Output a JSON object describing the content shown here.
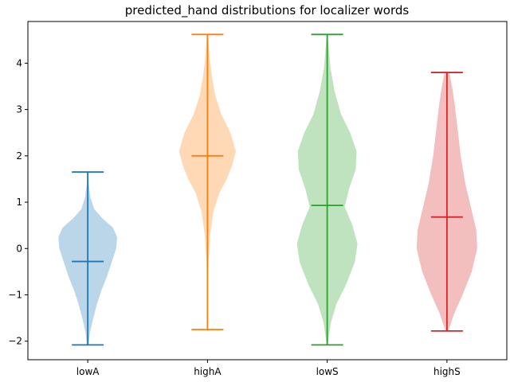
{
  "chart_data": {
    "type": "violin",
    "title": "predicted_hand distributions for localizer words",
    "xlabel": "",
    "ylabel": "",
    "ylim": [
      -2.4,
      4.9
    ],
    "yticks": [
      -2,
      -1,
      0,
      1,
      2,
      3,
      4
    ],
    "ytick_labels": [
      "−2",
      "−1",
      "0",
      "1",
      "2",
      "3",
      "4"
    ],
    "categories": [
      "lowA",
      "highA",
      "lowS",
      "highS"
    ],
    "grid": false,
    "series": [
      {
        "category": "lowA",
        "color": "#1f77b4",
        "min": -2.08,
        "max": 1.65,
        "median": -0.28,
        "density": [
          [
            -2.08,
            0.02
          ],
          [
            -1.8,
            0.05
          ],
          [
            -1.5,
            0.12
          ],
          [
            -1.2,
            0.2
          ],
          [
            -0.9,
            0.3
          ],
          [
            -0.6,
            0.42
          ],
          [
            -0.3,
            0.52
          ],
          [
            0.0,
            0.62
          ],
          [
            0.25,
            0.64
          ],
          [
            0.45,
            0.55
          ],
          [
            0.65,
            0.32
          ],
          [
            0.85,
            0.14
          ],
          [
            1.1,
            0.06
          ],
          [
            1.4,
            0.02
          ],
          [
            1.65,
            0.01
          ]
        ]
      },
      {
        "category": "highA",
        "color": "#ff7f0e",
        "min": -1.75,
        "max": 4.62,
        "median": 2.0,
        "density": [
          [
            -1.75,
            0.0
          ],
          [
            -1.0,
            0.005
          ],
          [
            -0.3,
            0.02
          ],
          [
            0.3,
            0.06
          ],
          [
            0.8,
            0.13
          ],
          [
            1.2,
            0.26
          ],
          [
            1.5,
            0.42
          ],
          [
            1.8,
            0.54
          ],
          [
            2.1,
            0.62
          ],
          [
            2.5,
            0.5
          ],
          [
            2.9,
            0.3
          ],
          [
            3.3,
            0.17
          ],
          [
            3.7,
            0.1
          ],
          [
            4.1,
            0.05
          ],
          [
            4.62,
            0.01
          ]
        ]
      },
      {
        "category": "lowS",
        "color": "#2ca02c",
        "min": -2.08,
        "max": 4.62,
        "median": 0.93,
        "density": [
          [
            -2.08,
            0.01
          ],
          [
            -1.6,
            0.08
          ],
          [
            -1.2,
            0.2
          ],
          [
            -0.8,
            0.4
          ],
          [
            -0.3,
            0.6
          ],
          [
            0.1,
            0.66
          ],
          [
            0.5,
            0.55
          ],
          [
            0.9,
            0.38
          ],
          [
            1.3,
            0.48
          ],
          [
            1.7,
            0.62
          ],
          [
            2.1,
            0.64
          ],
          [
            2.5,
            0.5
          ],
          [
            2.9,
            0.3
          ],
          [
            3.4,
            0.16
          ],
          [
            3.9,
            0.07
          ],
          [
            4.62,
            0.01
          ]
        ]
      },
      {
        "category": "highS",
        "color": "#d62728",
        "min": -1.78,
        "max": 3.8,
        "median": 0.68,
        "density": [
          [
            -1.78,
            0.03
          ],
          [
            -1.4,
            0.16
          ],
          [
            -1.0,
            0.34
          ],
          [
            -0.5,
            0.54
          ],
          [
            0.0,
            0.66
          ],
          [
            0.4,
            0.64
          ],
          [
            0.9,
            0.52
          ],
          [
            1.4,
            0.4
          ],
          [
            2.0,
            0.3
          ],
          [
            2.6,
            0.23
          ],
          [
            3.1,
            0.17
          ],
          [
            3.5,
            0.11
          ],
          [
            3.8,
            0.05
          ]
        ]
      }
    ]
  }
}
